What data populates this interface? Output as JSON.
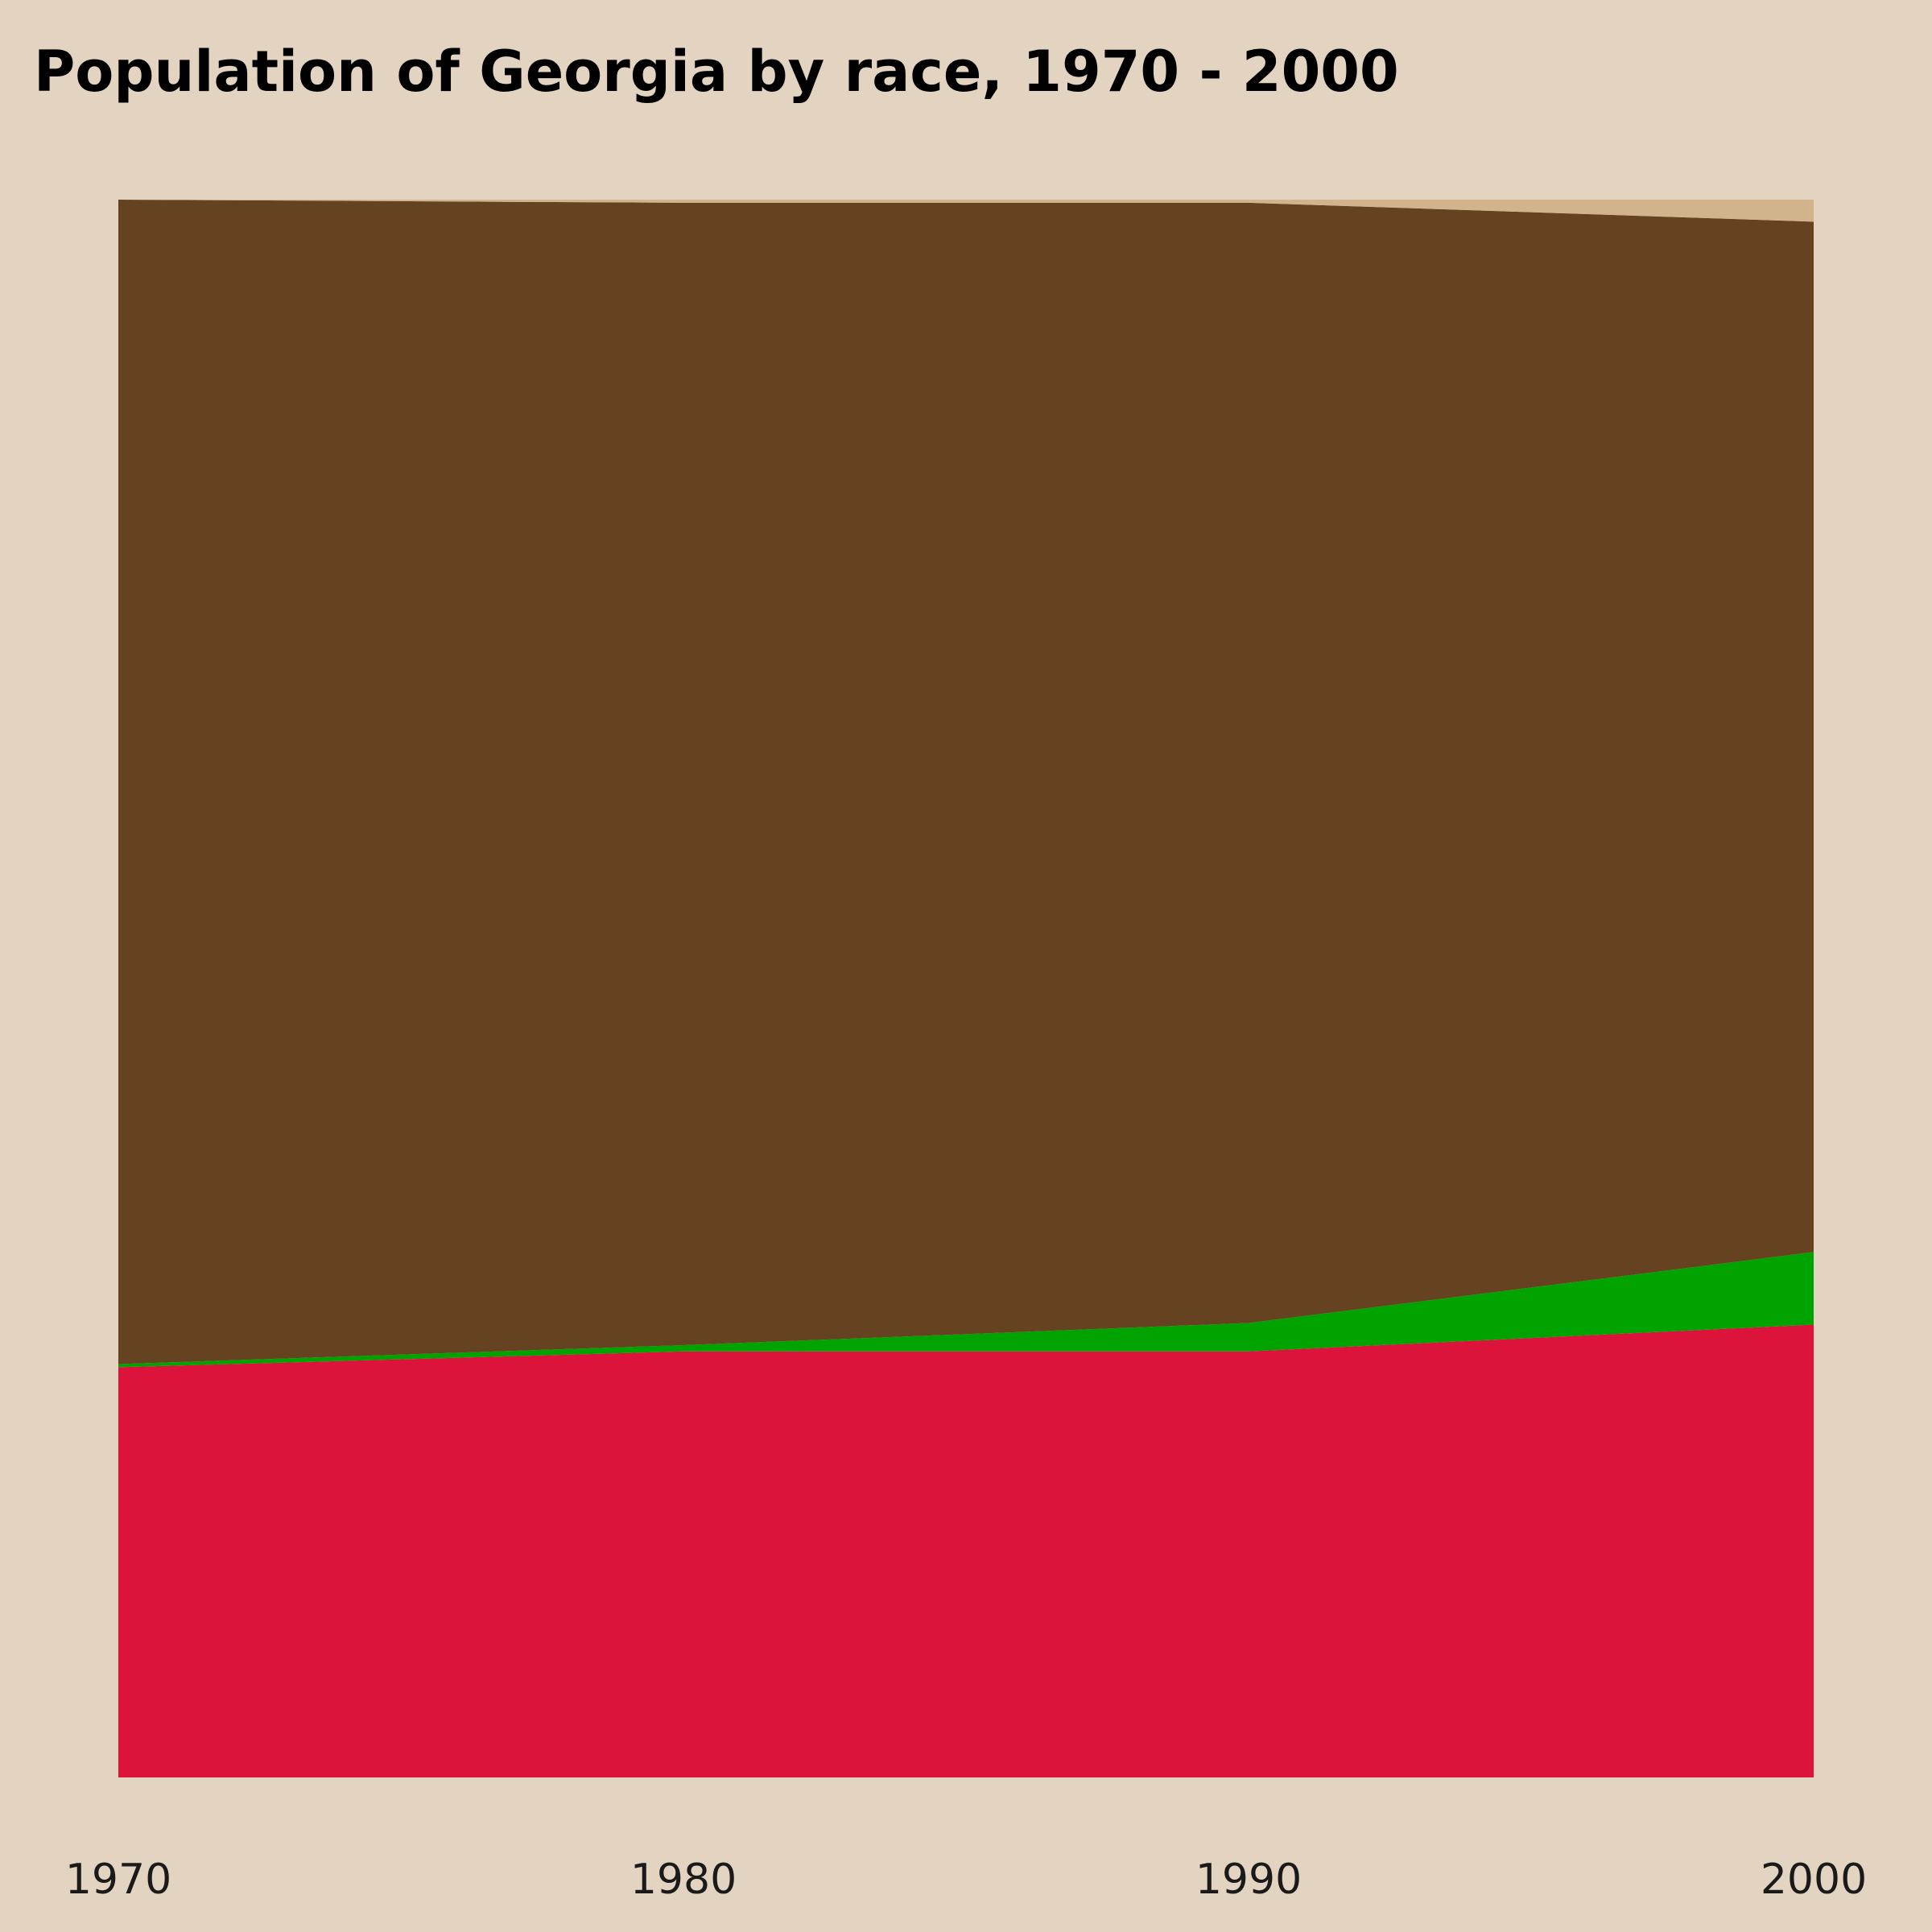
{
  "title": "Population of Georgia by race, 1970 - 2000",
  "chart_data": {
    "type": "area",
    "stacked": true,
    "normalized": true,
    "x": [
      1970,
      1980,
      1990,
      2000
    ],
    "x_tick_labels": [
      "1970",
      "1980",
      "1990",
      "2000"
    ],
    "ylim": [
      0,
      1
    ],
    "grid": false,
    "legend": "none",
    "series": [
      {
        "color": "#dc143c",
        "values": [
          0.26,
          0.27,
          0.27,
          0.287
        ]
      },
      {
        "color": "#00a300",
        "values": [
          0.002,
          0.004,
          0.018,
          0.046
        ]
      },
      {
        "color": "#654321",
        "values": [
          0.738,
          0.724,
          0.71,
          0.653
        ]
      },
      {
        "color": "#d2b48c",
        "values": [
          0.0,
          0.002,
          0.002,
          0.014
        ]
      }
    ]
  }
}
